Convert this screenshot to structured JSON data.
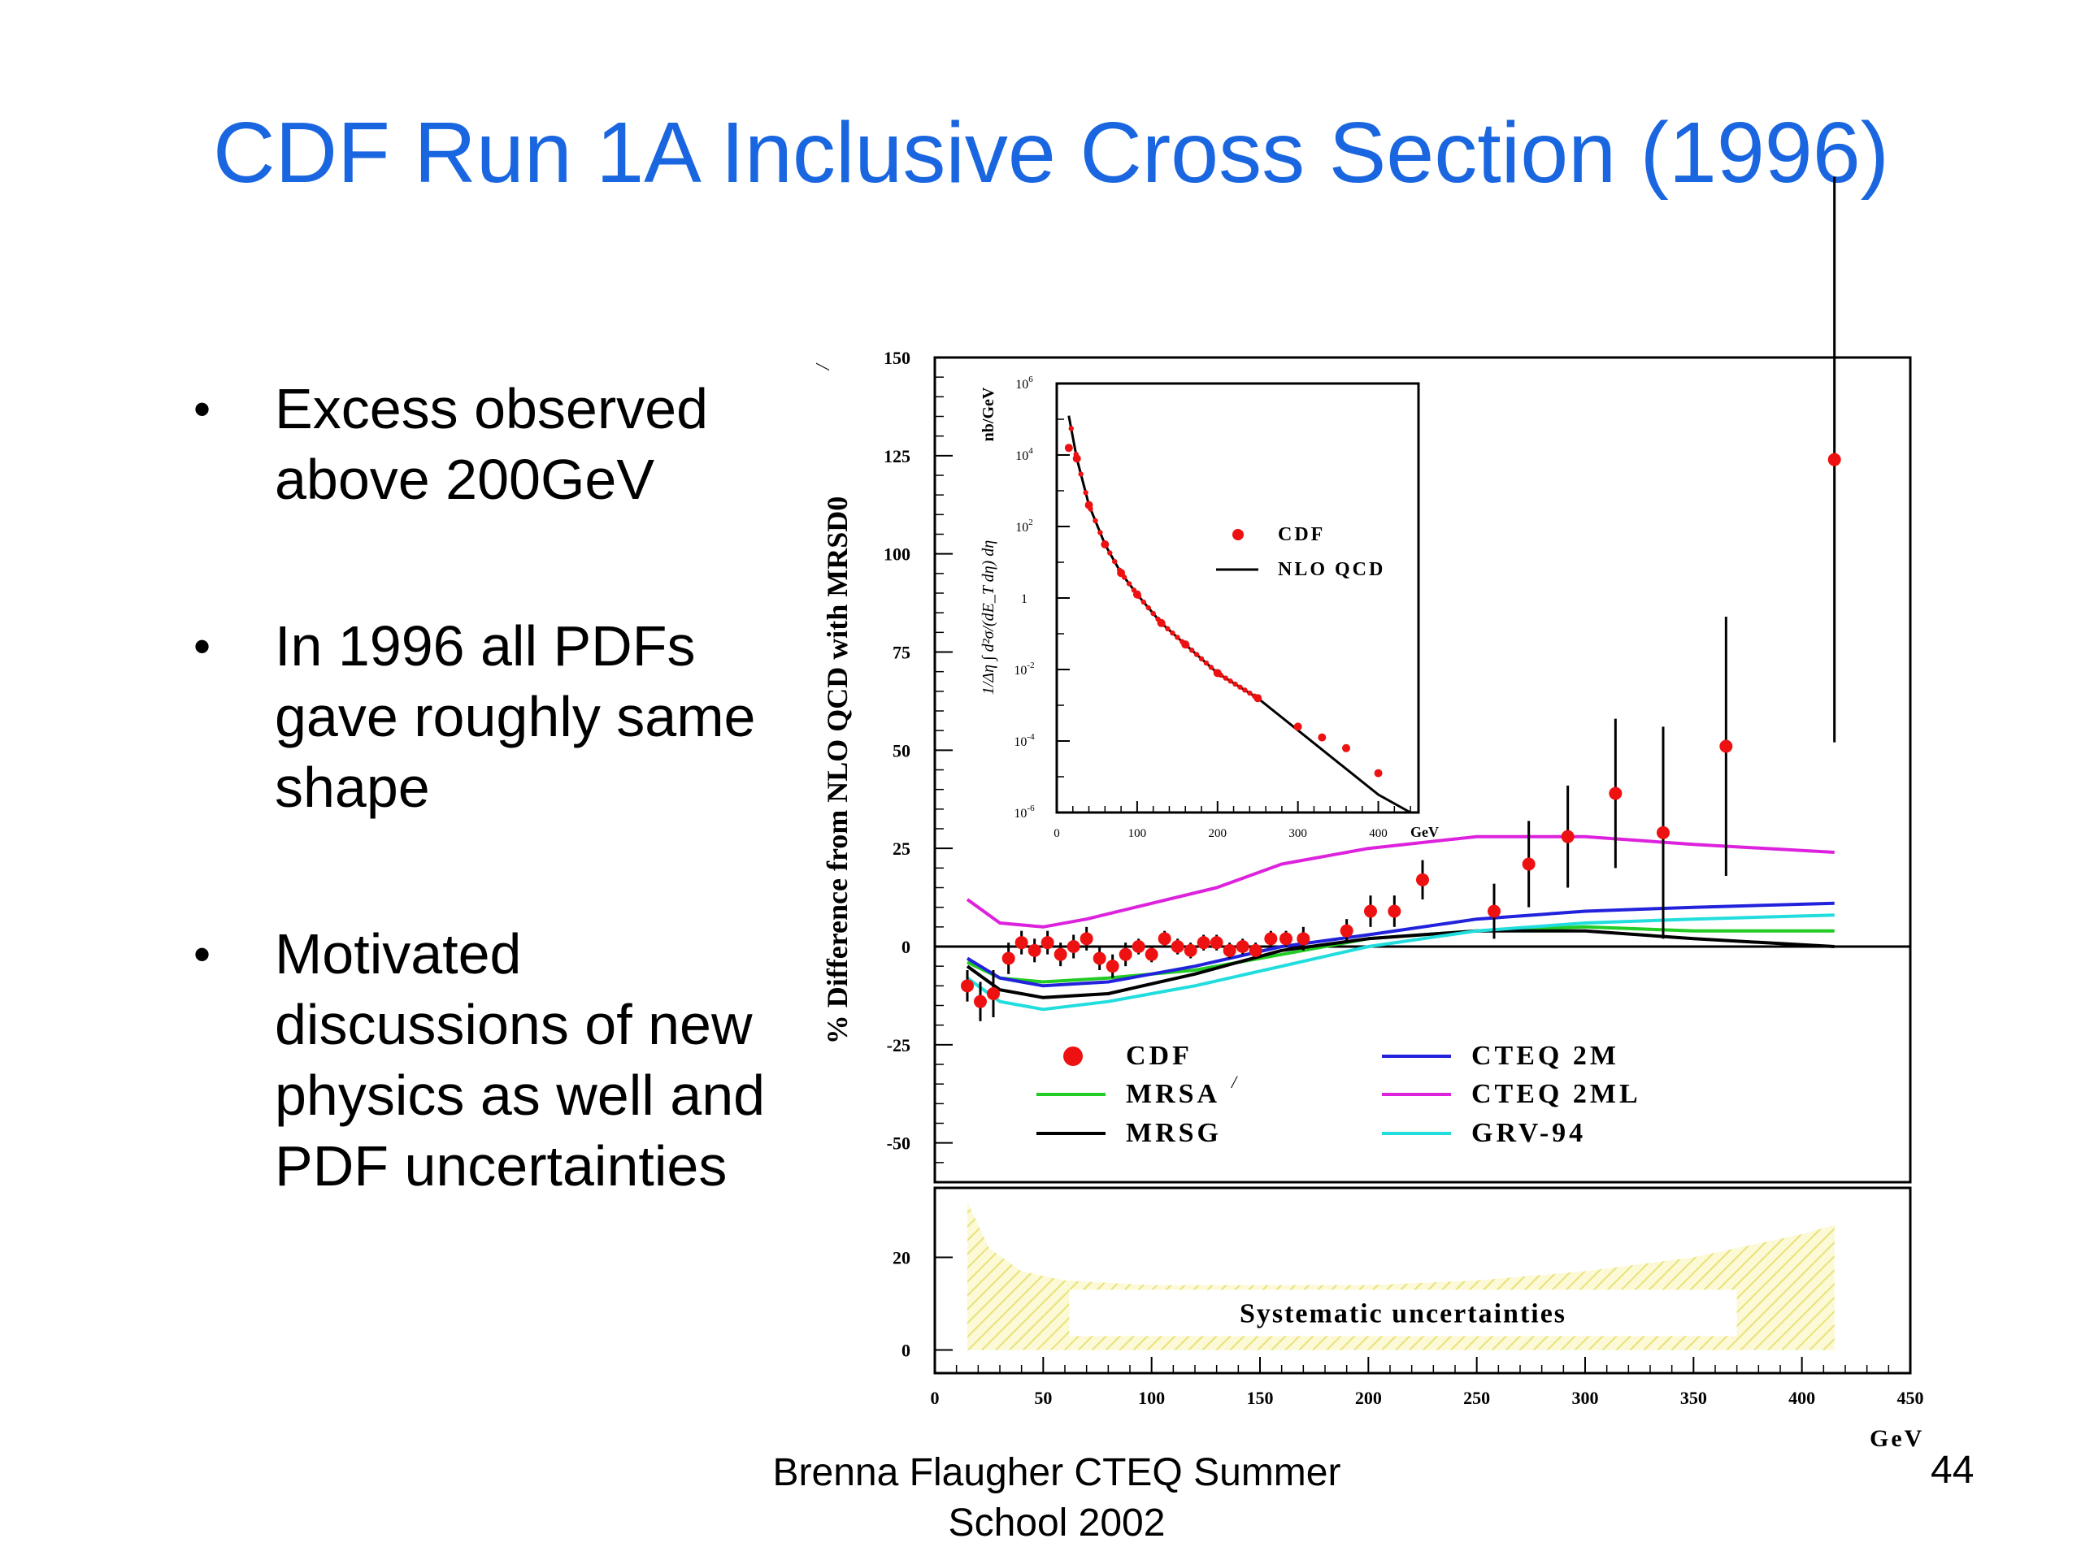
{
  "slide": {
    "title": "CDF Run 1A Inclusive  Cross Section (1996)",
    "bullets": [
      "Excess observed above 200GeV",
      "In 1996 all PDFs gave roughly same shape",
      "Motivated discussions of new physics as well and PDF uncertainties"
    ],
    "bullet_symbol": "•",
    "footer": "Brenna Flaugher CTEQ Summer School 2002",
    "page_number": "44",
    "title_color": "#1a66e0"
  },
  "chart_data": [
    {
      "type": "line",
      "ylabel_prefix": "% Difference from NLO QCD with MRSD0",
      "ylabel_superscript": "/",
      "xlabel": "GeV",
      "xlim": [
        0,
        450
      ],
      "ylim": [
        -60,
        150
      ],
      "x_ticks": [
        0,
        50,
        100,
        150,
        200,
        250,
        300,
        350,
        400,
        450
      ],
      "y_ticks": [
        -50,
        -25,
        0,
        25,
        50,
        75,
        100,
        125,
        150
      ],
      "legend_placement": "bottom",
      "legend": [
        {
          "name": "CDF",
          "symbol": "dot"
        },
        {
          "name": "MRSA",
          "superscript": "/",
          "symbol": "line"
        },
        {
          "name": "MRSG",
          "symbol": "line"
        },
        {
          "name": "CTEQ 2M",
          "symbol": "line"
        },
        {
          "name": "CTEQ 2ML",
          "symbol": "line"
        },
        {
          "name": "GRV-94",
          "symbol": "line"
        }
      ],
      "cdf_points": [
        {
          "x": 15,
          "y": -10,
          "err": 4
        },
        {
          "x": 21,
          "y": -14,
          "err": 5
        },
        {
          "x": 27,
          "y": -12,
          "err": 6
        },
        {
          "x": 34,
          "y": -3,
          "err": 4
        },
        {
          "x": 40,
          "y": 1,
          "err": 3
        },
        {
          "x": 46,
          "y": -1,
          "err": 3
        },
        {
          "x": 52,
          "y": 1,
          "err": 3
        },
        {
          "x": 58,
          "y": -2,
          "err": 3
        },
        {
          "x": 64,
          "y": 0,
          "err": 3
        },
        {
          "x": 70,
          "y": 2,
          "err": 3
        },
        {
          "x": 76,
          "y": -3,
          "err": 3
        },
        {
          "x": 82,
          "y": -5,
          "err": 3
        },
        {
          "x": 88,
          "y": -2,
          "err": 3
        },
        {
          "x": 94,
          "y": 0,
          "err": 2
        },
        {
          "x": 100,
          "y": -2,
          "err": 2
        },
        {
          "x": 106,
          "y": 2,
          "err": 2
        },
        {
          "x": 112,
          "y": 0,
          "err": 2
        },
        {
          "x": 118,
          "y": -1,
          "err": 2
        },
        {
          "x": 124,
          "y": 1,
          "err": 2
        },
        {
          "x": 130,
          "y": 1,
          "err": 2
        },
        {
          "x": 136,
          "y": -1,
          "err": 2
        },
        {
          "x": 142,
          "y": 0,
          "err": 2
        },
        {
          "x": 148,
          "y": -1,
          "err": 2
        },
        {
          "x": 155,
          "y": 2,
          "err": 2
        },
        {
          "x": 162,
          "y": 2,
          "err": 2
        },
        {
          "x": 170,
          "y": 2,
          "err": 3
        },
        {
          "x": 190,
          "y": 4,
          "err": 3
        },
        {
          "x": 201,
          "y": 9,
          "err": 4
        },
        {
          "x": 212,
          "y": 9,
          "err": 4
        },
        {
          "x": 225,
          "y": 17,
          "err": 5
        },
        {
          "x": 258,
          "y": 9,
          "err": 7
        },
        {
          "x": 274,
          "y": 21,
          "err": 11
        },
        {
          "x": 292,
          "y": 28,
          "err": 13
        },
        {
          "x": 314,
          "y": 39,
          "err": 19
        },
        {
          "x": 336,
          "y": 29,
          "err": 27
        },
        {
          "x": 365,
          "y": 51,
          "err": 33
        },
        {
          "x": 415,
          "y": 124,
          "err": 72
        }
      ],
      "series": [
        {
          "name": "MRSA",
          "color": "#22cc22",
          "x": [
            15,
            30,
            50,
            80,
            120,
            160,
            200,
            250,
            300,
            350,
            415
          ],
          "y": [
            -4,
            -8,
            -9,
            -8,
            -6,
            -2,
            2,
            4,
            5,
            4,
            4
          ]
        },
        {
          "name": "MRSG",
          "color": "#000000",
          "x": [
            15,
            30,
            50,
            80,
            120,
            160,
            200,
            250,
            300,
            350,
            415
          ],
          "y": [
            -5,
            -11,
            -13,
            -12,
            -7,
            -1,
            2,
            4,
            4,
            2,
            0
          ]
        },
        {
          "name": "CTEQ 2M",
          "color": "#2222dd",
          "x": [
            15,
            30,
            50,
            80,
            120,
            160,
            200,
            250,
            300,
            350,
            415
          ],
          "y": [
            -3,
            -8,
            -10,
            -9,
            -5,
            0,
            3,
            7,
            9,
            10,
            11
          ]
        },
        {
          "name": "CTEQ 2ML",
          "color": "#dd22dd",
          "x": [
            15,
            30,
            50,
            70,
            100,
            130,
            160,
            200,
            250,
            300,
            350,
            415
          ],
          "y": [
            12,
            6,
            5,
            7,
            11,
            15,
            21,
            25,
            28,
            28,
            26,
            24
          ]
        },
        {
          "name": "GRV-94",
          "color": "#22dddd",
          "x": [
            15,
            30,
            50,
            80,
            120,
            160,
            200,
            250,
            300,
            350,
            415
          ],
          "y": [
            -8,
            -14,
            -16,
            -14,
            -10,
            -5,
            0,
            4,
            6,
            7,
            8
          ]
        }
      ]
    },
    {
      "type": "line",
      "ylabel": "1/Δη ∫ d²σ/(dE_T dη) dη",
      "yunit": "nb/GeV",
      "xlabel": "GeV",
      "xlim": [
        0,
        450
      ],
      "ylim_log10": [
        -6,
        6
      ],
      "yscale": "log",
      "x_ticks": [
        0,
        100,
        200,
        300,
        400
      ],
      "y_ticks_log10": [
        -6,
        -4,
        -2,
        0,
        2,
        4,
        6
      ],
      "legend_placement": "right",
      "legend": [
        {
          "name": "CDF",
          "symbol": "dot"
        },
        {
          "name": "NLO QCD",
          "symbol": "line"
        }
      ],
      "nlo_log10": {
        "x": [
          15,
          25,
          40,
          60,
          80,
          100,
          130,
          160,
          200,
          250,
          300,
          350,
          400,
          440
        ],
        "y": [
          5.1,
          3.9,
          2.6,
          1.5,
          0.7,
          0.1,
          -0.7,
          -1.3,
          -2.1,
          -2.8,
          -3.7,
          -4.6,
          -5.5,
          -6.0
        ]
      },
      "cdf_log10": {
        "x": [
          15,
          25,
          40,
          60,
          80,
          100,
          130,
          160,
          200,
          250,
          300,
          330,
          360,
          400
        ],
        "y": [
          4.2,
          3.9,
          2.6,
          1.5,
          0.7,
          0.1,
          -0.7,
          -1.3,
          -2.1,
          -2.8,
          -3.6,
          -3.9,
          -4.2,
          -4.9
        ]
      }
    },
    {
      "type": "area",
      "label": "Systematic uncertainties",
      "xlim": [
        0,
        450
      ],
      "ylim": [
        -5,
        35
      ],
      "y_ticks": [
        0,
        20
      ],
      "x_ticks": [
        0,
        50,
        100,
        150,
        200,
        250,
        300,
        350,
        400,
        450
      ],
      "band": {
        "x": [
          15,
          25,
          40,
          60,
          100,
          150,
          200,
          250,
          300,
          350,
          400,
          415
        ],
        "y": [
          32,
          22,
          17,
          15,
          14,
          14,
          14,
          15,
          17,
          20,
          25,
          27
        ]
      },
      "fill_color": "#f4f0a0"
    }
  ]
}
